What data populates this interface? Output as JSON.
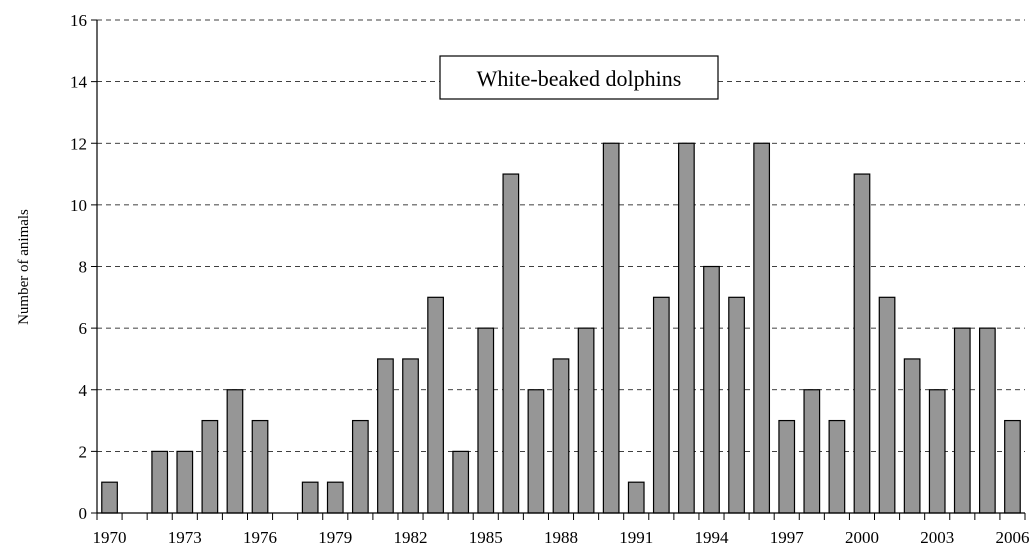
{
  "chart_data": {
    "type": "bar",
    "title": "White-beaked dolphins",
    "xlabel": "",
    "ylabel": "Number of animals",
    "categories": [
      "1970",
      "1971",
      "1972",
      "1973",
      "1974",
      "1975",
      "1976",
      "1977",
      "1978",
      "1979",
      "1980",
      "1981",
      "1982",
      "1983",
      "1984",
      "1985",
      "1986",
      "1987",
      "1988",
      "1989",
      "1990",
      "1991",
      "1992",
      "1993",
      "1994",
      "1995",
      "1996",
      "1997",
      "1998",
      "1999",
      "2000",
      "2001",
      "2002",
      "2003",
      "2004",
      "2005",
      "2006"
    ],
    "values": [
      1,
      0,
      2,
      2,
      3,
      4,
      3,
      0,
      1,
      1,
      3,
      5,
      5,
      7,
      2,
      6,
      11,
      4,
      5,
      6,
      12,
      1,
      7,
      12,
      8,
      7,
      12,
      3,
      4,
      3,
      11,
      7,
      5,
      4,
      6,
      6,
      3
    ],
    "x_tick_labels": [
      "1970",
      "1973",
      "1976",
      "1979",
      "1982",
      "1985",
      "1988",
      "1991",
      "1994",
      "1997",
      "2000",
      "2003",
      "2006"
    ],
    "y_tick_labels": [
      "0",
      "2",
      "4",
      "6",
      "8",
      "10",
      "12",
      "14",
      "16"
    ],
    "ylim": [
      0,
      16
    ],
    "grid": "horizontal-dashed",
    "legend": "none",
    "colors": {
      "bar_fill": "#969696",
      "bar_stroke": "#000000",
      "grid": "#000000"
    }
  }
}
